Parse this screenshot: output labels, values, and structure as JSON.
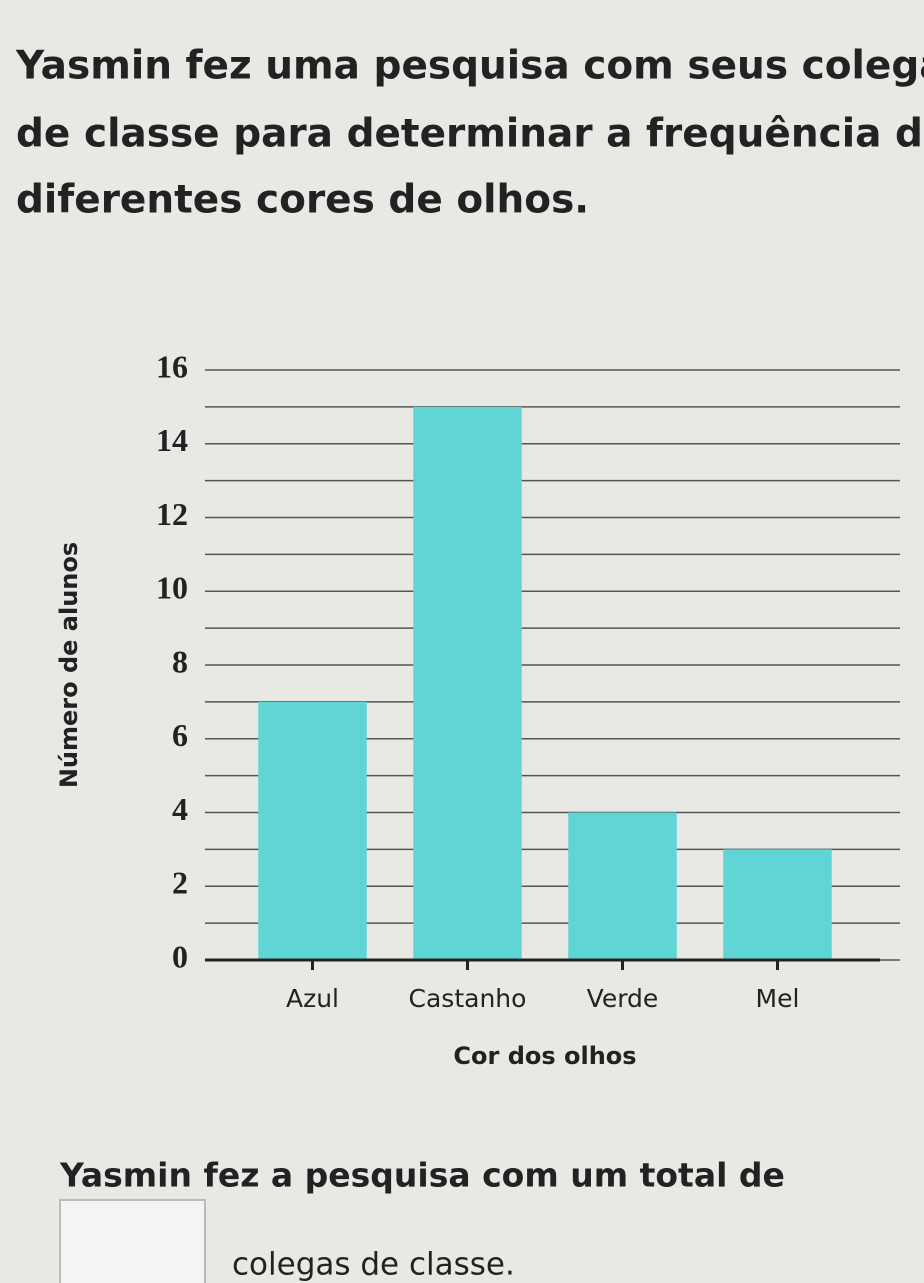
{
  "intro": [
    "Yasmin fez uma pesquisa com seus colegas",
    "de classe para determinar a frequência de",
    "diferentes cores de olhos."
  ],
  "chart_data": {
    "type": "bar",
    "x_label": "Cor dos olhos",
    "y_label": "Número de alunos",
    "categories": [
      "Azul",
      "Castanho",
      "Verde",
      "Mel"
    ],
    "values": [
      7,
      15,
      4,
      3
    ],
    "color": "#5fd5d6",
    "ylim": [
      0,
      16
    ],
    "yticks": [
      0,
      2,
      4,
      6,
      8,
      10,
      12,
      14,
      16
    ],
    "minor_yticks": [
      1,
      3,
      5,
      7,
      9,
      11,
      13,
      15
    ],
    "grid": true
  },
  "question_before": "Yasmin fez a pesquisa com um total de",
  "question_after": "colegas de classe."
}
